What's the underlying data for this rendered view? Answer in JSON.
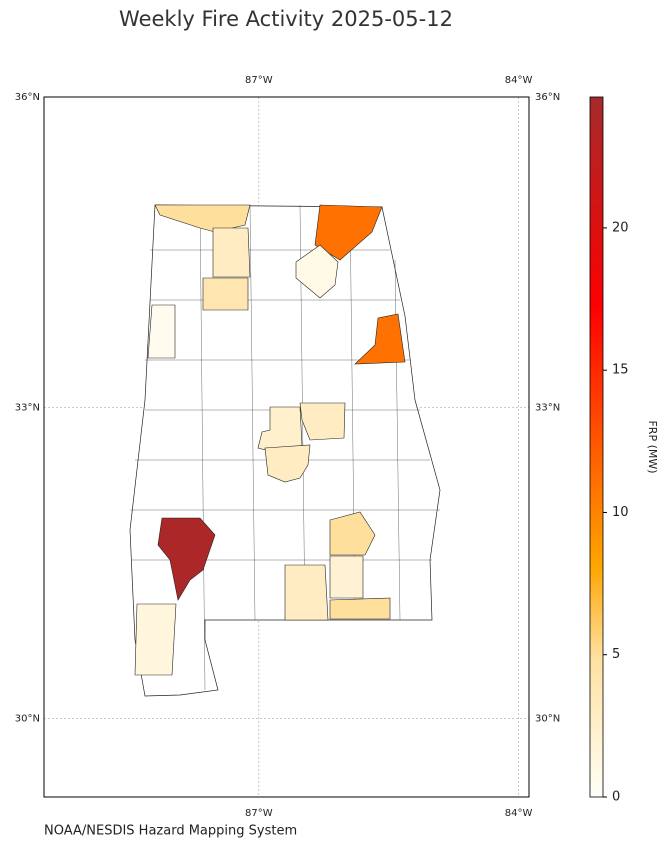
{
  "title": "Weekly Fire Activity 2025-05-12",
  "map": {
    "lonlim": [
      -89.48,
      -83.88
    ],
    "latlim": [
      29.24,
      36
    ],
    "lon_ticks": [
      {
        "value": -87,
        "label": "87°W"
      },
      {
        "value": -84,
        "label": "84°W"
      }
    ],
    "lat_ticks": [
      {
        "value": 36,
        "label": "36°N"
      },
      {
        "value": 33,
        "label": "33°N"
      },
      {
        "value": 30,
        "label": "30°N"
      }
    ],
    "region_values": [
      5,
      3,
      11,
      1,
      4,
      0.5,
      11,
      2.5,
      3,
      3,
      24,
      5,
      3,
      2,
      5,
      1.5
    ]
  },
  "colorbar": {
    "label": "FRP (MW)",
    "lim": [
      0,
      24.6
    ],
    "ticks": [
      0,
      5,
      10,
      15,
      20
    ]
  },
  "credit": "NOAA/NESDIS Hazard Mapping System"
}
